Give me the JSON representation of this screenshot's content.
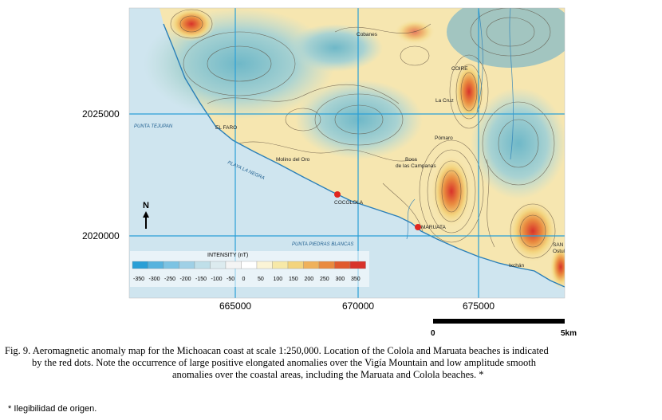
{
  "map": {
    "y_ticks": [
      "2025000",
      "2020000"
    ],
    "x_ticks": [
      "665000",
      "670000",
      "675000"
    ],
    "north_label": "N",
    "places": [
      {
        "key": "cobanes",
        "label": "Cobanes"
      },
      {
        "key": "coire",
        "label": "COIRE"
      },
      {
        "key": "la_cruz",
        "label": "La Cruz"
      },
      {
        "key": "el_faro",
        "label": "EL FARO"
      },
      {
        "key": "pomaro",
        "label": "Pómaro"
      },
      {
        "key": "molino",
        "label": "Molino del Oro"
      },
      {
        "key": "boca1",
        "label": "Boca"
      },
      {
        "key": "boca2",
        "label": "de las Campanas"
      },
      {
        "key": "cocolola",
        "label": "COCOLOLA"
      },
      {
        "key": "maruata",
        "label": "MARUATA"
      },
      {
        "key": "san",
        "label": "SAN"
      },
      {
        "key": "ostula",
        "label": "Ostula"
      },
      {
        "key": "ixchan",
        "label": "Ixchán"
      }
    ],
    "sea_labels": [
      {
        "key": "punta_tejupan",
        "label": "PUNTA TEJUPAN"
      },
      {
        "key": "playa_negra",
        "label": "PLAYA LA NEGRA"
      },
      {
        "key": "punta_piedras",
        "label": "PUNTA PIEDRAS BLANCAS"
      }
    ],
    "legend": {
      "title": "INTENSITY (nT)",
      "ticks": [
        "-350",
        "-300",
        "-250",
        "-200",
        "-150",
        "-100",
        "-50",
        "0",
        "50",
        "100",
        "150",
        "200",
        "250",
        "300",
        "350"
      ],
      "colors": [
        "#2a9fd6",
        "#57b3de",
        "#7cc3e3",
        "#9fd0e6",
        "#bfdfe9",
        "#dcebef",
        "#f4f4f4",
        "#ffffff",
        "#fbf4d6",
        "#f7e9a8",
        "#f3d47e",
        "#efb15b",
        "#e98a3f",
        "#e05a2e",
        "#d8322a"
      ]
    },
    "scale": {
      "start": "0",
      "end": "5km"
    },
    "colors": {
      "sea": "#cfe5ef",
      "land_cool": "#bcdcd6",
      "land_warm": "#f6e6b0",
      "grid": "#2a9fd6",
      "dot": "#e0261e"
    }
  },
  "caption": {
    "line1": "Fig. 9. Aeromagnetic anomaly map for the Michoacan coast at scale 1:250,000. Location of the Colola and Maruata beaches is indicated",
    "line2": "by the red dots. Note the occurrence of large positive elongated anomalies over the Vigía Mountain and low amplitude smooth",
    "line3": "anomalies over the coastal areas, including the Maruata and Colola beaches. *"
  },
  "footnote": "* Ilegibilidad de origen."
}
